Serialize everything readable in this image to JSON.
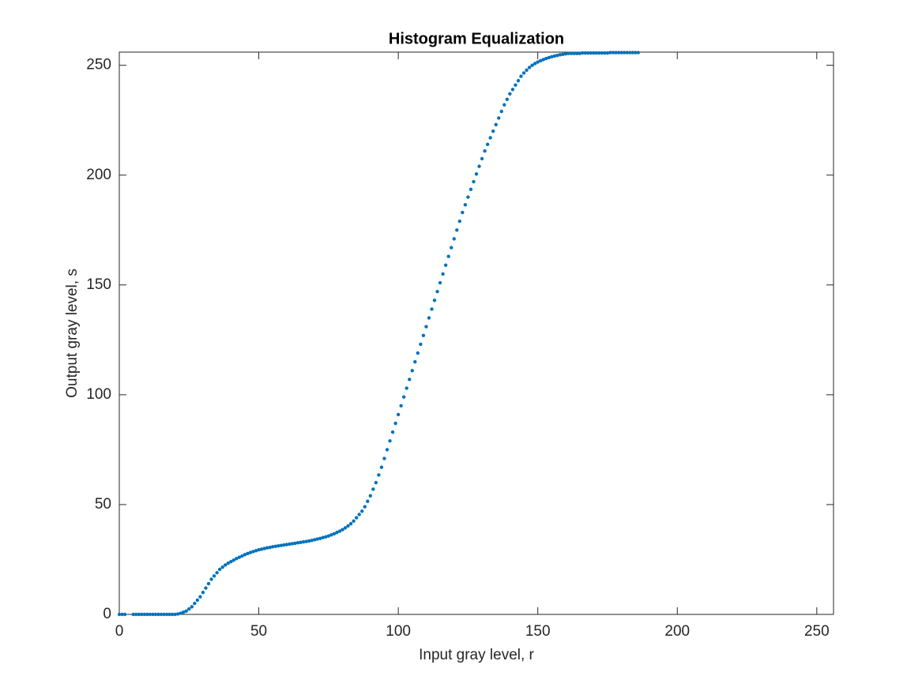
{
  "chart_data": {
    "type": "scatter",
    "title": "Histogram Equalization",
    "x_label": "Input gray level, r",
    "y_label": "Output gray level, s",
    "color": "#0072bd",
    "xlim": [
      0,
      256
    ],
    "ylim": [
      0,
      256
    ],
    "xticks": [
      0,
      50,
      100,
      150,
      200,
      250
    ],
    "yticks": [
      0,
      50,
      100,
      150,
      200,
      250
    ],
    "box": true,
    "x": [
      0,
      1,
      2,
      5,
      6,
      7,
      8,
      9,
      10,
      11,
      12,
      13,
      14,
      15,
      16,
      17,
      18,
      19,
      20,
      21,
      22,
      23,
      24,
      25,
      26,
      27,
      28,
      29,
      30,
      31,
      32,
      33,
      34,
      35,
      36,
      37,
      38,
      39,
      40,
      41,
      42,
      43,
      44,
      45,
      46,
      47,
      48,
      49,
      50,
      51,
      52,
      53,
      54,
      55,
      56,
      57,
      58,
      59,
      60,
      61,
      62,
      63,
      64,
      65,
      66,
      67,
      68,
      69,
      70,
      71,
      72,
      73,
      74,
      75,
      76,
      77,
      78,
      79,
      80,
      81,
      82,
      83,
      84,
      85,
      86,
      87,
      88,
      89,
      90,
      91,
      92,
      93,
      94,
      95,
      96,
      97,
      98,
      99,
      100,
      101,
      102,
      103,
      104,
      105,
      106,
      107,
      108,
      109,
      110,
      111,
      112,
      113,
      114,
      115,
      116,
      117,
      118,
      119,
      120,
      121,
      122,
      123,
      124,
      125,
      126,
      127,
      128,
      129,
      130,
      131,
      132,
      133,
      134,
      135,
      136,
      137,
      138,
      139,
      140,
      141,
      142,
      143,
      144,
      145,
      146,
      147,
      148,
      149,
      150,
      151,
      152,
      153,
      154,
      155,
      156,
      157,
      158,
      159,
      160,
      161,
      162,
      163,
      164,
      165,
      166,
      167,
      168,
      169,
      170,
      171,
      172,
      173,
      174,
      175,
      176,
      177,
      178,
      179,
      180,
      181,
      182,
      183,
      184,
      185,
      186
    ],
    "values": [
      0,
      0,
      0,
      0,
      0,
      0,
      0,
      0,
      0,
      0,
      0,
      0,
      0,
      0,
      0,
      0,
      0,
      0,
      0,
      0.2,
      0.5,
      1,
      1.5,
      2.5,
      3.5,
      5,
      6.5,
      8,
      10,
      12,
      14,
      16,
      17.5,
      19,
      20.5,
      21.5,
      22.5,
      23.3,
      24,
      24.7,
      25.4,
      26,
      26.6,
      27.2,
      27.7,
      28.2,
      28.6,
      29,
      29.4,
      29.7,
      30,
      30.3,
      30.5,
      30.8,
      31,
      31.2,
      31.4,
      31.6,
      31.8,
      32,
      32.2,
      32.4,
      32.6,
      32.8,
      33,
      33.2,
      33.4,
      33.7,
      34,
      34.3,
      34.6,
      35,
      35.3,
      35.7,
      36.2,
      36.7,
      37.3,
      37.9,
      38.6,
      39.4,
      40.3,
      41.3,
      42.5,
      44,
      45.5,
      47,
      49,
      51.5,
      54,
      57,
      60,
      63.5,
      67,
      71,
      75,
      79,
      83,
      87,
      91,
      95,
      99,
      103,
      107,
      111,
      115,
      119,
      123,
      127,
      131,
      135,
      139,
      143,
      147,
      151,
      155,
      159,
      163,
      167,
      171,
      175,
      179,
      183,
      186.5,
      190,
      193.5,
      197,
      200.5,
      204,
      207.5,
      211,
      214,
      217,
      220,
      223,
      226,
      229,
      232,
      234.5,
      237,
      239,
      241,
      243,
      245,
      246.5,
      247.8,
      249,
      250,
      250.8,
      251.5,
      252.1,
      252.6,
      253.1,
      253.5,
      253.9,
      254.2,
      254.5,
      254.8,
      255,
      255.2,
      255.4,
      255.4,
      255.4,
      255.4,
      255.4,
      255.6,
      255.6,
      255.6,
      255.6,
      255.6,
      255.6,
      255.6,
      255.6,
      255.6,
      255.6,
      255.8,
      255.8,
      255.8,
      255.8,
      255.8,
      255.8,
      255.8,
      255.8,
      255.8,
      255.8,
      255.8
    ]
  }
}
